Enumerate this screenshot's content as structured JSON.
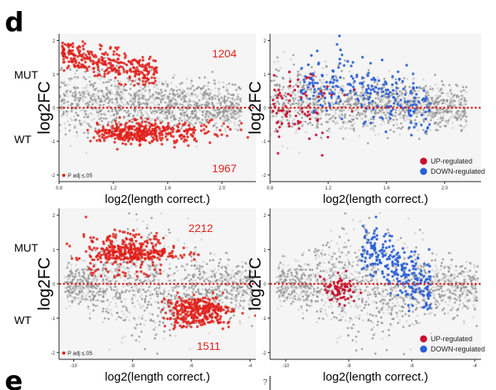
{
  "figure": {
    "panel_letter_top": "d",
    "panel_letter_bottom": "e",
    "top_edge_glyph": "?",
    "row_labels": {
      "mut": "MUT",
      "wt": "WT"
    },
    "colors": {
      "significant": "#e0201a",
      "up": "#c8102e",
      "down": "#2a5fd8",
      "background_point": "#8c8c8c",
      "zero_line": "#e0201a",
      "plot_bg": "#f5f5f5"
    }
  },
  "chart_data": [
    {
      "id": "top-left",
      "type": "scatter",
      "ylabel": "log2FC",
      "xlabel": "log2(length correct.)",
      "xticks": [
        0.8,
        1.2,
        1.6,
        2.0
      ],
      "xtick_labels": [
        "0.8",
        "1.2",
        "1.6",
        "2.0"
      ],
      "xlim": [
        0.8,
        2.25
      ],
      "yticks": [
        2,
        1,
        0,
        -1,
        -2
      ],
      "ytick_labels": [
        "2",
        "1",
        "0",
        "-1",
        "-2"
      ],
      "ylim": [
        -2.2,
        2.2
      ],
      "reference_line_y": 0,
      "count_up": "1204",
      "count_down": "1967",
      "legend": [
        "P adj ≤.05"
      ],
      "series": [
        {
          "name": "P adj ≤.05",
          "color": "#e0201a"
        }
      ]
    },
    {
      "id": "top-right",
      "type": "scatter",
      "ylabel": "log2FC",
      "xlabel": "log2(length correct.)",
      "xticks": [
        0.8,
        1.2,
        1.6,
        2.0
      ],
      "xtick_labels": [
        "0.8",
        "1.2",
        "1.6",
        "2.0"
      ],
      "xlim": [
        0.8,
        2.25
      ],
      "yticks": [
        2,
        1,
        0,
        -1,
        -2
      ],
      "ytick_labels": [
        "2",
        "1",
        "0",
        "-1",
        "-2"
      ],
      "ylim": [
        -2.2,
        2.2
      ],
      "reference_line_y": 0,
      "legend": [
        "UP-regulated",
        "DOWN-regulated"
      ],
      "series": [
        {
          "name": "UP-regulated",
          "color": "#c8102e"
        },
        {
          "name": "DOWN-regulated",
          "color": "#2a5fd8"
        }
      ]
    },
    {
      "id": "bottom-left",
      "type": "scatter",
      "ylabel": "log2FC",
      "xlabel": "log2(length correct.)",
      "xticks": [
        -10,
        -8,
        -6,
        -4
      ],
      "xtick_labels": [
        "-10",
        "-8",
        "-6",
        "-4"
      ],
      "xlim": [
        -10.5,
        -3.8
      ],
      "yticks": [
        2,
        1,
        0,
        -1,
        -2
      ],
      "ytick_labels": [
        "2",
        "1",
        "0",
        "-1",
        "-2"
      ],
      "ylim": [
        -2.2,
        2.2
      ],
      "reference_line_y": 0,
      "count_up": "2212",
      "count_down": "1511",
      "legend": [
        "P adj ≤.05"
      ],
      "series": [
        {
          "name": "P adj ≤.05",
          "color": "#e0201a"
        }
      ]
    },
    {
      "id": "bottom-right",
      "type": "scatter",
      "ylabel": "log2FC",
      "xlabel": "log2(length correct.)",
      "xticks": [
        -10,
        -8,
        -6,
        -4
      ],
      "xtick_labels": [
        "-10",
        "-8",
        "-6",
        "-4"
      ],
      "xlim": [
        -10.5,
        -3.8
      ],
      "yticks": [
        2,
        1,
        0,
        -1,
        -2
      ],
      "ytick_labels": [
        "2",
        "1",
        "0",
        "-1",
        "-2"
      ],
      "ylim": [
        -2.2,
        2.2
      ],
      "reference_line_y": 0,
      "legend": [
        "UP-regulated",
        "DOWN-regulated"
      ],
      "series": [
        {
          "name": "UP-regulated",
          "color": "#c8102e"
        },
        {
          "name": "DOWN-regulated",
          "color": "#2a5fd8"
        }
      ]
    }
  ]
}
